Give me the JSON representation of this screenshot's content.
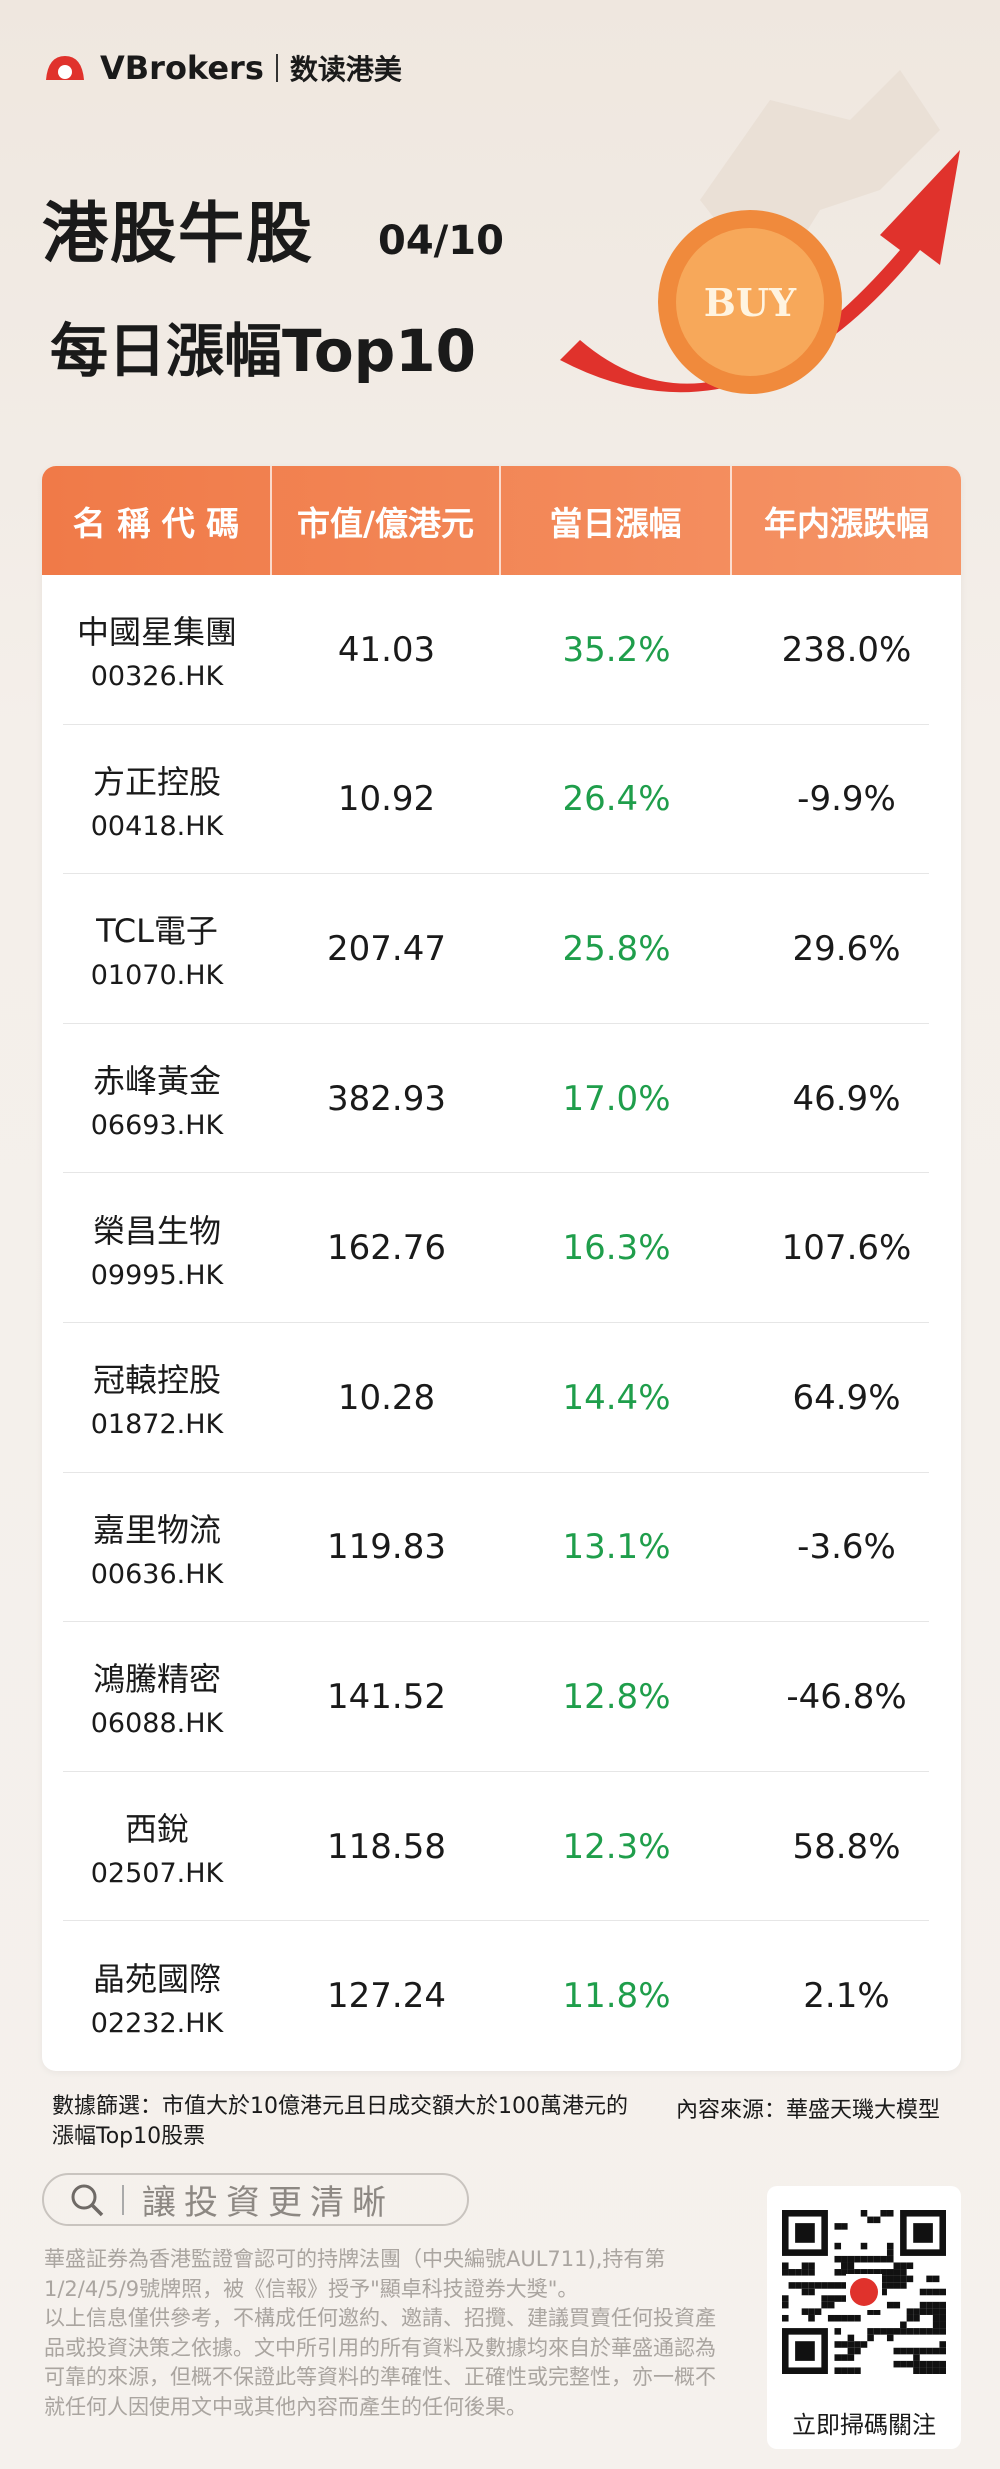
{
  "header": {
    "brand": "VBrokers",
    "brand_sub": "数读港美",
    "title": "港股牛股",
    "date": "04/10",
    "subtitle": "每日漲幅Top10",
    "coin_text": "BUY"
  },
  "table": {
    "headers": [
      "名 稱 代 碼",
      "市值/億港元",
      "當日漲幅",
      "年内漲跌幅"
    ],
    "rows": [
      {
        "name": "中國星集團",
        "code": "00326.HK",
        "mcap": "41.03",
        "day": "35.2%",
        "ytd": "238.0%"
      },
      {
        "name": "方正控股",
        "code": "00418.HK",
        "mcap": "10.92",
        "day": "26.4%",
        "ytd": "-9.9%"
      },
      {
        "name": "TCL電子",
        "code": "01070.HK",
        "mcap": "207.47",
        "day": "25.8%",
        "ytd": "29.6%"
      },
      {
        "name": "赤峰黃金",
        "code": "06693.HK",
        "mcap": "382.93",
        "day": "17.0%",
        "ytd": "46.9%"
      },
      {
        "name": "榮昌生物",
        "code": "09995.HK",
        "mcap": "162.76",
        "day": "16.3%",
        "ytd": "107.6%"
      },
      {
        "name": "冠轅控股",
        "code": "01872.HK",
        "mcap": "10.28",
        "day": "14.4%",
        "ytd": "64.9%"
      },
      {
        "name": "嘉里物流",
        "code": "00636.HK",
        "mcap": "119.83",
        "day": "13.1%",
        "ytd": "-3.6%"
      },
      {
        "name": "鴻騰精密",
        "code": "06088.HK",
        "mcap": "141.52",
        "day": "12.8%",
        "ytd": "-46.8%"
      },
      {
        "name": "西銳",
        "code": "02507.HK",
        "mcap": "118.58",
        "day": "12.3%",
        "ytd": "58.8%"
      },
      {
        "name": "晶苑國際",
        "code": "02232.HK",
        "mcap": "127.24",
        "day": "11.8%",
        "ytd": "2.1%"
      }
    ]
  },
  "footer": {
    "filter": "數據篩選：市值大於10億港元且日成交額大於100萬港元的漲幅Top10股票",
    "source": "內容來源：華盛天璣大模型",
    "search": "讓投資更清晰",
    "disclaimer": [
      "華盛証券為香港監證會認可的持牌法團（中央編號AUL711),持有第1/2/4/5/9號牌照，被《信報》授予\"顯卓科技證券大獎\"。",
      "以上信息僅供參考，不構成任何邀約、邀請、招攬、建議買賣任何投資產品或投資決策之依據。文中所引用的所有資料及數據均來自於華盛通認為可靠的來源，但概不保證此等資料的準確性、正確性或完整性，亦一概不就任何人因使用文中或其他內容而產生的任何後果。"
    ],
    "qr_caption": "立即掃碼關注"
  }
}
